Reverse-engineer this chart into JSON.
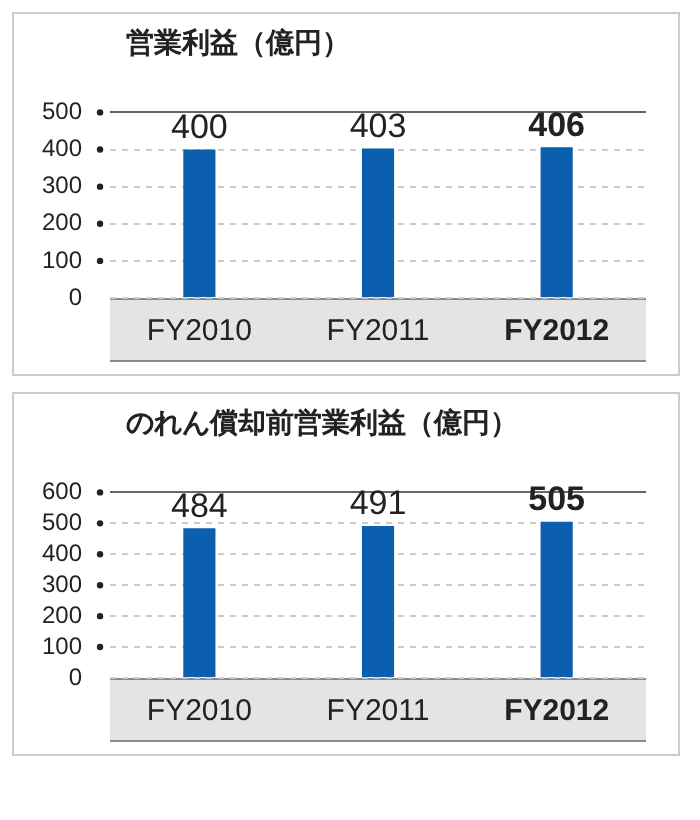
{
  "chart_data": [
    {
      "type": "bar",
      "title": "営業利益（億円）",
      "categories": [
        "FY2010",
        "FY2011",
        "FY2012"
      ],
      "values": [
        400,
        403,
        406
      ],
      "color": "#0b5fae",
      "ylim": [
        0,
        500
      ],
      "yticks": [
        0,
        100,
        200,
        300,
        400,
        500
      ],
      "grid": "y",
      "data_labels": true
    },
    {
      "type": "bar",
      "title": "のれん償却前営業利益（億円）",
      "categories": [
        "FY2010",
        "FY2011",
        "FY2012"
      ],
      "values": [
        484,
        491,
        505
      ],
      "color": "#0b5fae",
      "ylim": [
        0,
        600
      ],
      "yticks": [
        0,
        100,
        200,
        300,
        400,
        500,
        600
      ],
      "grid": "y",
      "data_labels": true
    }
  ]
}
